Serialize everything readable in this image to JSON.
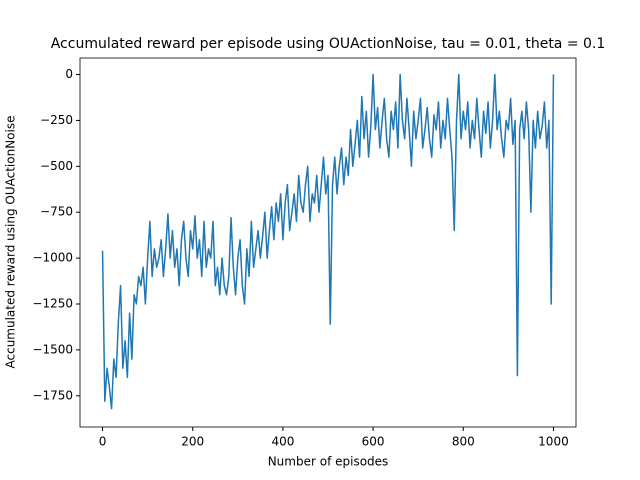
{
  "chart_data": {
    "type": "line",
    "title": "Accumulated reward per episode using OUActionNoise, tau = 0.01, theta = 0.1",
    "x_label": "Number of episodes",
    "y_label": "Accumulated reward using OUActionNoise",
    "x": [
      0,
      5,
      10,
      15,
      20,
      25,
      30,
      35,
      40,
      45,
      50,
      55,
      60,
      65,
      70,
      75,
      80,
      85,
      90,
      95,
      100,
      105,
      110,
      115,
      120,
      125,
      130,
      135,
      140,
      145,
      150,
      155,
      160,
      165,
      170,
      175,
      180,
      185,
      190,
      195,
      200,
      205,
      210,
      215,
      220,
      225,
      230,
      235,
      240,
      245,
      250,
      255,
      260,
      265,
      270,
      275,
      280,
      285,
      290,
      295,
      300,
      305,
      310,
      315,
      320,
      325,
      330,
      335,
      340,
      345,
      350,
      355,
      360,
      365,
      370,
      375,
      380,
      385,
      390,
      395,
      400,
      405,
      410,
      415,
      420,
      425,
      430,
      435,
      440,
      445,
      450,
      455,
      460,
      465,
      470,
      475,
      480,
      485,
      490,
      495,
      500,
      505,
      510,
      515,
      520,
      525,
      530,
      535,
      540,
      545,
      550,
      555,
      560,
      565,
      570,
      575,
      580,
      585,
      590,
      595,
      600,
      605,
      610,
      615,
      620,
      625,
      630,
      635,
      640,
      645,
      650,
      655,
      660,
      665,
      670,
      675,
      680,
      685,
      690,
      695,
      700,
      705,
      710,
      715,
      720,
      725,
      730,
      735,
      740,
      745,
      750,
      755,
      760,
      765,
      770,
      775,
      780,
      785,
      790,
      795,
      800,
      805,
      810,
      815,
      820,
      825,
      830,
      835,
      840,
      845,
      850,
      855,
      860,
      865,
      870,
      875,
      880,
      885,
      890,
      895,
      900,
      905,
      910,
      915,
      920,
      925,
      930,
      935,
      940,
      945,
      950,
      955,
      960,
      965,
      970,
      975,
      980,
      985,
      990,
      995,
      1000
    ],
    "series": [
      {
        "color": "#1f77b4",
        "values": [
          -960,
          -1780,
          -1600,
          -1700,
          -1820,
          -1550,
          -1650,
          -1350,
          -1150,
          -1600,
          -1450,
          -1650,
          -1300,
          -1550,
          -1200,
          -1250,
          -1100,
          -1150,
          -1050,
          -1250,
          -1000,
          -800,
          -1100,
          -950,
          -1050,
          -1000,
          -900,
          -1100,
          -950,
          -760,
          -1000,
          -850,
          -1050,
          -950,
          -1150,
          -900,
          -800,
          -1000,
          -1100,
          -850,
          -950,
          -770,
          -1000,
          -900,
          -1100,
          -800,
          -1050,
          -950,
          -1000,
          -800,
          -1150,
          -1050,
          -1200,
          -1000,
          -1150,
          -1200,
          -1100,
          -780,
          -1050,
          -1200,
          -1000,
          -900,
          -1150,
          -1250,
          -950,
          -1100,
          -800,
          -1050,
          -950,
          -850,
          -1000,
          -880,
          -750,
          -1000,
          -850,
          -720,
          -900,
          -700,
          -800,
          -650,
          -900,
          -700,
          -600,
          -850,
          -750,
          -650,
          -800,
          -550,
          -700,
          -750,
          -600,
          -500,
          -800,
          -650,
          -700,
          -550,
          -750,
          -600,
          -450,
          -650,
          -550,
          -1360,
          -600,
          -450,
          -650,
          -500,
          -400,
          -600,
          -450,
          -550,
          -300,
          -500,
          -380,
          -250,
          -450,
          -120,
          -350,
          -200,
          -450,
          -280,
          0,
          -300,
          -180,
          -400,
          -250,
          -130,
          -350,
          -450,
          -200,
          -300,
          -150,
          -400,
          0,
          -250,
          -350,
          -130,
          -300,
          -500,
          -200,
          -350,
          -250,
          -130,
          -400,
          -300,
          -180,
          -350,
          -450,
          -220,
          -300,
          -150,
          -400,
          -250,
          -350,
          -130,
          -300,
          -450,
          -850,
          -250,
          0,
          -350,
          -200,
          -300,
          -150,
          -400,
          -250,
          -350,
          -130,
          -300,
          -450,
          -200,
          -320,
          -150,
          -400,
          -250,
          0,
          -300,
          -200,
          -350,
          -450,
          -250,
          -300,
          -130,
          -380,
          -250,
          -1640,
          -300,
          -200,
          -350,
          -150,
          -300,
          -750,
          -250,
          -400,
          -200,
          -350,
          -280,
          -150,
          -400,
          -250,
          -1250,
          0
        ]
      }
    ],
    "xlim": [
      -50,
      1050
    ],
    "ylim": [
      -1920,
      90
    ],
    "xticks": [
      0,
      200,
      400,
      600,
      800,
      1000
    ],
    "yticks": [
      0,
      {
        "value": -250,
        "label": "−250"
      },
      {
        "value": -500,
        "label": "−500"
      },
      {
        "value": -750,
        "label": "−750"
      },
      {
        "value": -1000,
        "label": "−1000"
      },
      {
        "value": -1250,
        "label": "−1250"
      },
      {
        "value": -1500,
        "label": "−1500"
      },
      {
        "value": -1750,
        "label": "−1750"
      }
    ]
  }
}
